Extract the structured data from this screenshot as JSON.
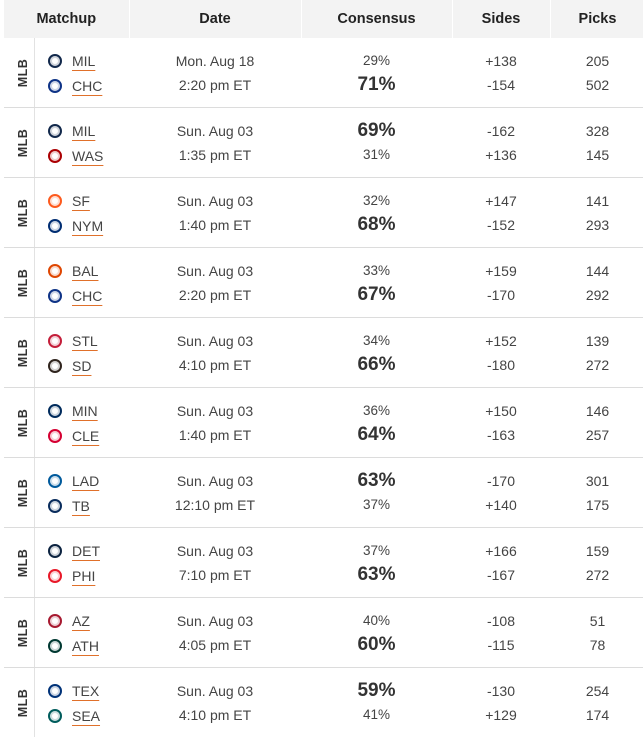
{
  "header": {
    "matchup": "Matchup",
    "date": "Date",
    "consensus": "Consensus",
    "sides": "Sides",
    "picks": "Picks"
  },
  "games": [
    {
      "league": "MLB",
      "away": "MIL",
      "home": "CHC",
      "away_logo": "brewers-logo-icon",
      "home_logo": "cubs-logo-icon",
      "date": "Mon. Aug 18",
      "time": "2:20 pm ET",
      "away_pct": "29%",
      "home_pct": "71%",
      "favorite": "home",
      "away_side": "+138",
      "home_side": "-154",
      "away_picks": "205",
      "home_picks": "502"
    },
    {
      "league": "MLB",
      "away": "MIL",
      "home": "WAS",
      "away_logo": "brewers-logo-icon",
      "home_logo": "nationals-logo-icon",
      "date": "Sun. Aug 03",
      "time": "1:35 pm ET",
      "away_pct": "69%",
      "home_pct": "31%",
      "favorite": "away",
      "away_side": "-162",
      "home_side": "+136",
      "away_picks": "328",
      "home_picks": "145"
    },
    {
      "league": "MLB",
      "away": "SF",
      "home": "NYM",
      "away_logo": "giants-logo-icon",
      "home_logo": "mets-logo-icon",
      "date": "Sun. Aug 03",
      "time": "1:40 pm ET",
      "away_pct": "32%",
      "home_pct": "68%",
      "favorite": "home",
      "away_side": "+147",
      "home_side": "-152",
      "away_picks": "141",
      "home_picks": "293"
    },
    {
      "league": "MLB",
      "away": "BAL",
      "home": "CHC",
      "away_logo": "orioles-logo-icon",
      "home_logo": "cubs-logo-icon",
      "date": "Sun. Aug 03",
      "time": "2:20 pm ET",
      "away_pct": "33%",
      "home_pct": "67%",
      "favorite": "home",
      "away_side": "+159",
      "home_side": "-170",
      "away_picks": "144",
      "home_picks": "292"
    },
    {
      "league": "MLB",
      "away": "STL",
      "home": "SD",
      "away_logo": "cardinals-logo-icon",
      "home_logo": "padres-logo-icon",
      "date": "Sun. Aug 03",
      "time": "4:10 pm ET",
      "away_pct": "34%",
      "home_pct": "66%",
      "favorite": "home",
      "away_side": "+152",
      "home_side": "-180",
      "away_picks": "139",
      "home_picks": "272"
    },
    {
      "league": "MLB",
      "away": "MIN",
      "home": "CLE",
      "away_logo": "twins-logo-icon",
      "home_logo": "guardians-logo-icon",
      "date": "Sun. Aug 03",
      "time": "1:40 pm ET",
      "away_pct": "36%",
      "home_pct": "64%",
      "favorite": "home",
      "away_side": "+150",
      "home_side": "-163",
      "away_picks": "146",
      "home_picks": "257"
    },
    {
      "league": "MLB",
      "away": "LAD",
      "home": "TB",
      "away_logo": "dodgers-logo-icon",
      "home_logo": "rays-logo-icon",
      "date": "Sun. Aug 03",
      "time": "12:10 pm ET",
      "away_pct": "63%",
      "home_pct": "37%",
      "favorite": "away",
      "away_side": "-170",
      "home_side": "+140",
      "away_picks": "301",
      "home_picks": "175"
    },
    {
      "league": "MLB",
      "away": "DET",
      "home": "PHI",
      "away_logo": "tigers-logo-icon",
      "home_logo": "phillies-logo-icon",
      "date": "Sun. Aug 03",
      "time": "7:10 pm ET",
      "away_pct": "37%",
      "home_pct": "63%",
      "favorite": "home",
      "away_side": "+166",
      "home_side": "-167",
      "away_picks": "159",
      "home_picks": "272"
    },
    {
      "league": "MLB",
      "away": "AZ",
      "home": "ATH",
      "away_logo": "diamondbacks-logo-icon",
      "home_logo": "athletics-logo-icon",
      "date": "Sun. Aug 03",
      "time": "4:05 pm ET",
      "away_pct": "40%",
      "home_pct": "60%",
      "favorite": "home",
      "away_side": "-108",
      "home_side": "-115",
      "away_picks": "51",
      "home_picks": "78"
    },
    {
      "league": "MLB",
      "away": "TEX",
      "home": "SEA",
      "away_logo": "rangers-logo-icon",
      "home_logo": "mariners-logo-icon",
      "date": "Sun. Aug 03",
      "time": "4:10 pm ET",
      "away_pct": "59%",
      "home_pct": "41%",
      "favorite": "away",
      "away_side": "-130",
      "home_side": "+129",
      "away_picks": "254",
      "home_picks": "174"
    }
  ],
  "logo_colors": {
    "brewers-logo-icon": "#12284b",
    "cubs-logo-icon": "#0e3386",
    "nationals-logo-icon": "#ab0003",
    "giants-logo-icon": "#fd5a1e",
    "mets-logo-icon": "#002d72",
    "orioles-logo-icon": "#df4601",
    "cardinals-logo-icon": "#c41e3a",
    "padres-logo-icon": "#2f241d",
    "twins-logo-icon": "#002b5c",
    "guardians-logo-icon": "#d50032",
    "dodgers-logo-icon": "#005a9c",
    "rays-logo-icon": "#092c5c",
    "tigers-logo-icon": "#0c2340",
    "phillies-logo-icon": "#e81828",
    "diamondbacks-logo-icon": "#a71930",
    "athletics-logo-icon": "#003831",
    "rangers-logo-icon": "#003278",
    "mariners-logo-icon": "#005c5c"
  }
}
